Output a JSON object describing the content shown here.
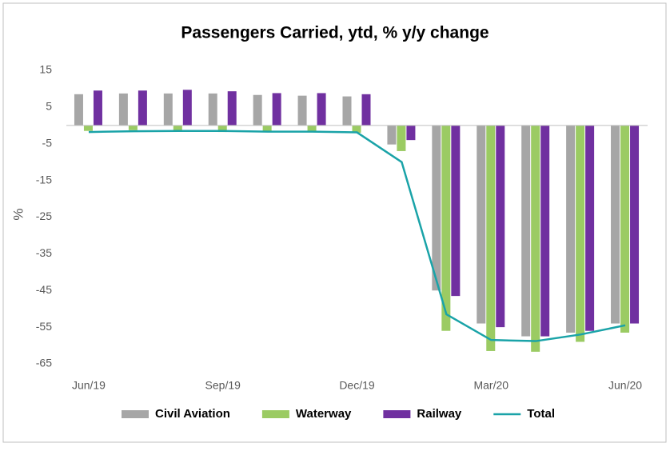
{
  "chart_data": {
    "type": "bar_line",
    "title": "Passengers Carried, ytd, % y/y change",
    "ylabel": "%",
    "categories": [
      "Jun/19",
      null,
      null,
      "Sep/19",
      null,
      null,
      "Dec/19",
      null,
      null,
      "Mar/20",
      null,
      null,
      "Jun/20"
    ],
    "series": [
      {
        "name": "Civil Aviation",
        "type": "bar",
        "color": "#a6a6a6",
        "values": [
          8.5,
          8.7,
          8.7,
          8.7,
          8.3,
          8.1,
          7.9,
          -5.2,
          -45,
          -54,
          -57.5,
          -56.5,
          -54
        ]
      },
      {
        "name": "Waterway",
        "type": "bar",
        "color": "#9bcb63",
        "values": [
          -1.5,
          -1.3,
          -1.3,
          -1.8,
          -1.8,
          -1.8,
          -2,
          -7,
          -56,
          -61.5,
          -61.7,
          -59,
          -56.5
        ]
      },
      {
        "name": "Railway",
        "type": "bar",
        "color": "#7030a0",
        "values": [
          9.5,
          9.5,
          9.7,
          9.3,
          8.8,
          8.8,
          8.5,
          -4,
          -46.5,
          -55,
          -57.5,
          -56,
          -54
        ]
      },
      {
        "name": "Total",
        "type": "line",
        "color": "#1aa3a8",
        "values": [
          -1.8,
          -1.6,
          -1.5,
          -1.5,
          -1.7,
          -1.7,
          -1.9,
          -10,
          -51.5,
          -58.5,
          -58.8,
          -57,
          -54.5
        ]
      }
    ],
    "ylim": [
      -65,
      15
    ],
    "yticks": [
      15,
      5,
      -5,
      -15,
      -25,
      -35,
      -45,
      -55,
      -65
    ],
    "grid": false,
    "legend": "bottom"
  }
}
